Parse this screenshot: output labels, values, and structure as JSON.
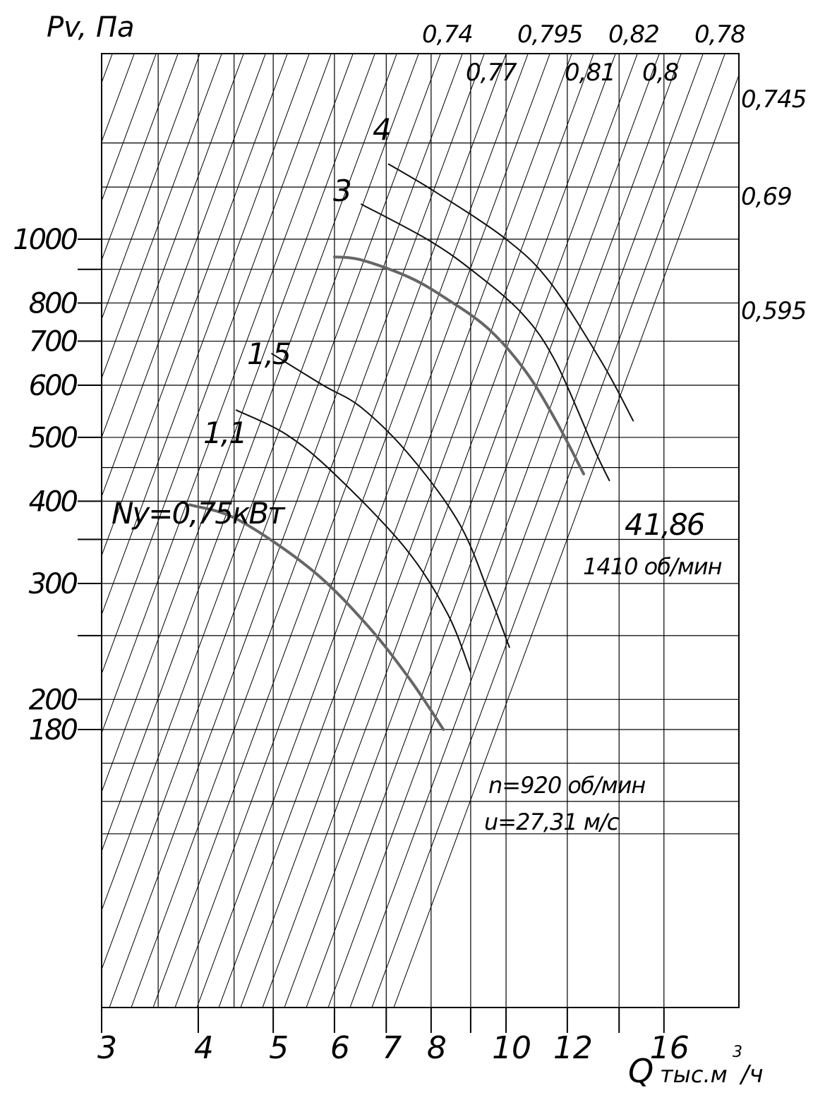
{
  "chart_data": {
    "type": "line",
    "y_axis": {
      "label": "Pv, Па",
      "scale": "log",
      "range": [
        120,
        1500
      ],
      "ticks": [
        {
          "value": 1000,
          "label": "1000"
        },
        {
          "value": 800,
          "label": "800"
        },
        {
          "value": 700,
          "label": "700"
        },
        {
          "value": 600,
          "label": "600"
        },
        {
          "value": 500,
          "label": "500"
        },
        {
          "value": 400,
          "label": "400"
        },
        {
          "value": 300,
          "label": "300"
        },
        {
          "value": 200,
          "label": "200"
        },
        {
          "value": 180,
          "label": "180"
        }
      ],
      "minor_ticks": [
        900,
        350,
        250
      ]
    },
    "x_axis": {
      "label_main": "Q",
      "label_unit": "тыс.м",
      "label_sup": "3",
      "label_tail": "/ч",
      "scale": "log",
      "range": [
        3,
        20
      ],
      "ticks": [
        {
          "value": 3,
          "label": "3"
        },
        {
          "value": 4,
          "label": "4"
        },
        {
          "value": 5,
          "label": "5"
        },
        {
          "value": 6,
          "label": "6"
        },
        {
          "value": 7,
          "label": "7"
        },
        {
          "value": 8,
          "label": "8"
        },
        {
          "value": 10,
          "label": "10"
        },
        {
          "value": 12,
          "label": "12"
        },
        {
          "value": 16,
          "label": "16"
        }
      ],
      "minor_ticks": [
        9,
        14
      ]
    },
    "efficiency_labels": [
      {
        "value": 0.74,
        "label": "0,74"
      },
      {
        "value": 0.77,
        "label": "0,77"
      },
      {
        "value": 0.795,
        "label": "0,795"
      },
      {
        "value": 0.81,
        "label": "0,81"
      },
      {
        "value": 0.82,
        "label": "0,82"
      },
      {
        "value": 0.8,
        "label": "0,8"
      },
      {
        "value": 0.78,
        "label": "0,78"
      },
      {
        "value": 0.745,
        "label": "0,745"
      },
      {
        "value": 0.69,
        "label": "0,69"
      },
      {
        "value": 0.595,
        "label": "0,595"
      }
    ],
    "series": [
      {
        "label": "4",
        "speed": "1410 об/мин",
        "color": "#111111",
        "points": [
          [
            7.05,
            1300
          ],
          [
            8.1,
            1180
          ],
          [
            10.0,
            1000
          ],
          [
            11.4,
            860
          ],
          [
            13.3,
            650
          ],
          [
            14.6,
            530
          ]
        ]
      },
      {
        "label": "3",
        "speed": "1410 об/мин",
        "color": "#111111",
        "points": [
          [
            6.5,
            1130
          ],
          [
            7.9,
            1000
          ],
          [
            9.0,
            900
          ],
          [
            10.5,
            770
          ],
          [
            11.6,
            650
          ],
          [
            13.0,
            480
          ],
          [
            13.6,
            430
          ]
        ]
      },
      {
        "label": "1,86",
        "speed": "1410 об/мин",
        "color": "#666666",
        "points": [
          [
            6.0,
            940
          ],
          [
            6.5,
            930
          ],
          [
            7.5,
            875
          ],
          [
            8.4,
            810
          ],
          [
            9.5,
            730
          ],
          [
            10.6,
            630
          ],
          [
            11.6,
            530
          ],
          [
            12.6,
            440
          ]
        ]
      },
      {
        "label": "1,5",
        "speed": "920 об/мин",
        "color": "#111111",
        "points": [
          [
            4.98,
            670
          ],
          [
            5.8,
            600
          ],
          [
            6.5,
            555
          ],
          [
            7.5,
            470
          ],
          [
            8.7,
            370
          ],
          [
            9.5,
            290
          ],
          [
            10.1,
            240
          ]
        ]
      },
      {
        "label": "1,1",
        "speed": "920 об/мин",
        "color": "#111111",
        "points": [
          [
            4.48,
            550
          ],
          [
            5.2,
            505
          ],
          [
            6.0,
            440
          ],
          [
            7.4,
            340
          ],
          [
            8.4,
            270
          ],
          [
            9.0,
            220
          ]
        ]
      },
      {
        "label": "Ny=0,75кВт",
        "speed": "920 об/мин",
        "color": "#666666",
        "points": [
          [
            3.9,
            395
          ],
          [
            4.5,
            375
          ],
          [
            5.6,
            315
          ],
          [
            6.6,
            260
          ],
          [
            7.5,
            215
          ],
          [
            8.3,
            180
          ]
        ]
      }
    ],
    "annotations": [
      {
        "text": "1410 об/мин"
      },
      {
        "text": "n=920 об/мин"
      },
      {
        "text": "u=27,31 м/с"
      }
    ]
  }
}
